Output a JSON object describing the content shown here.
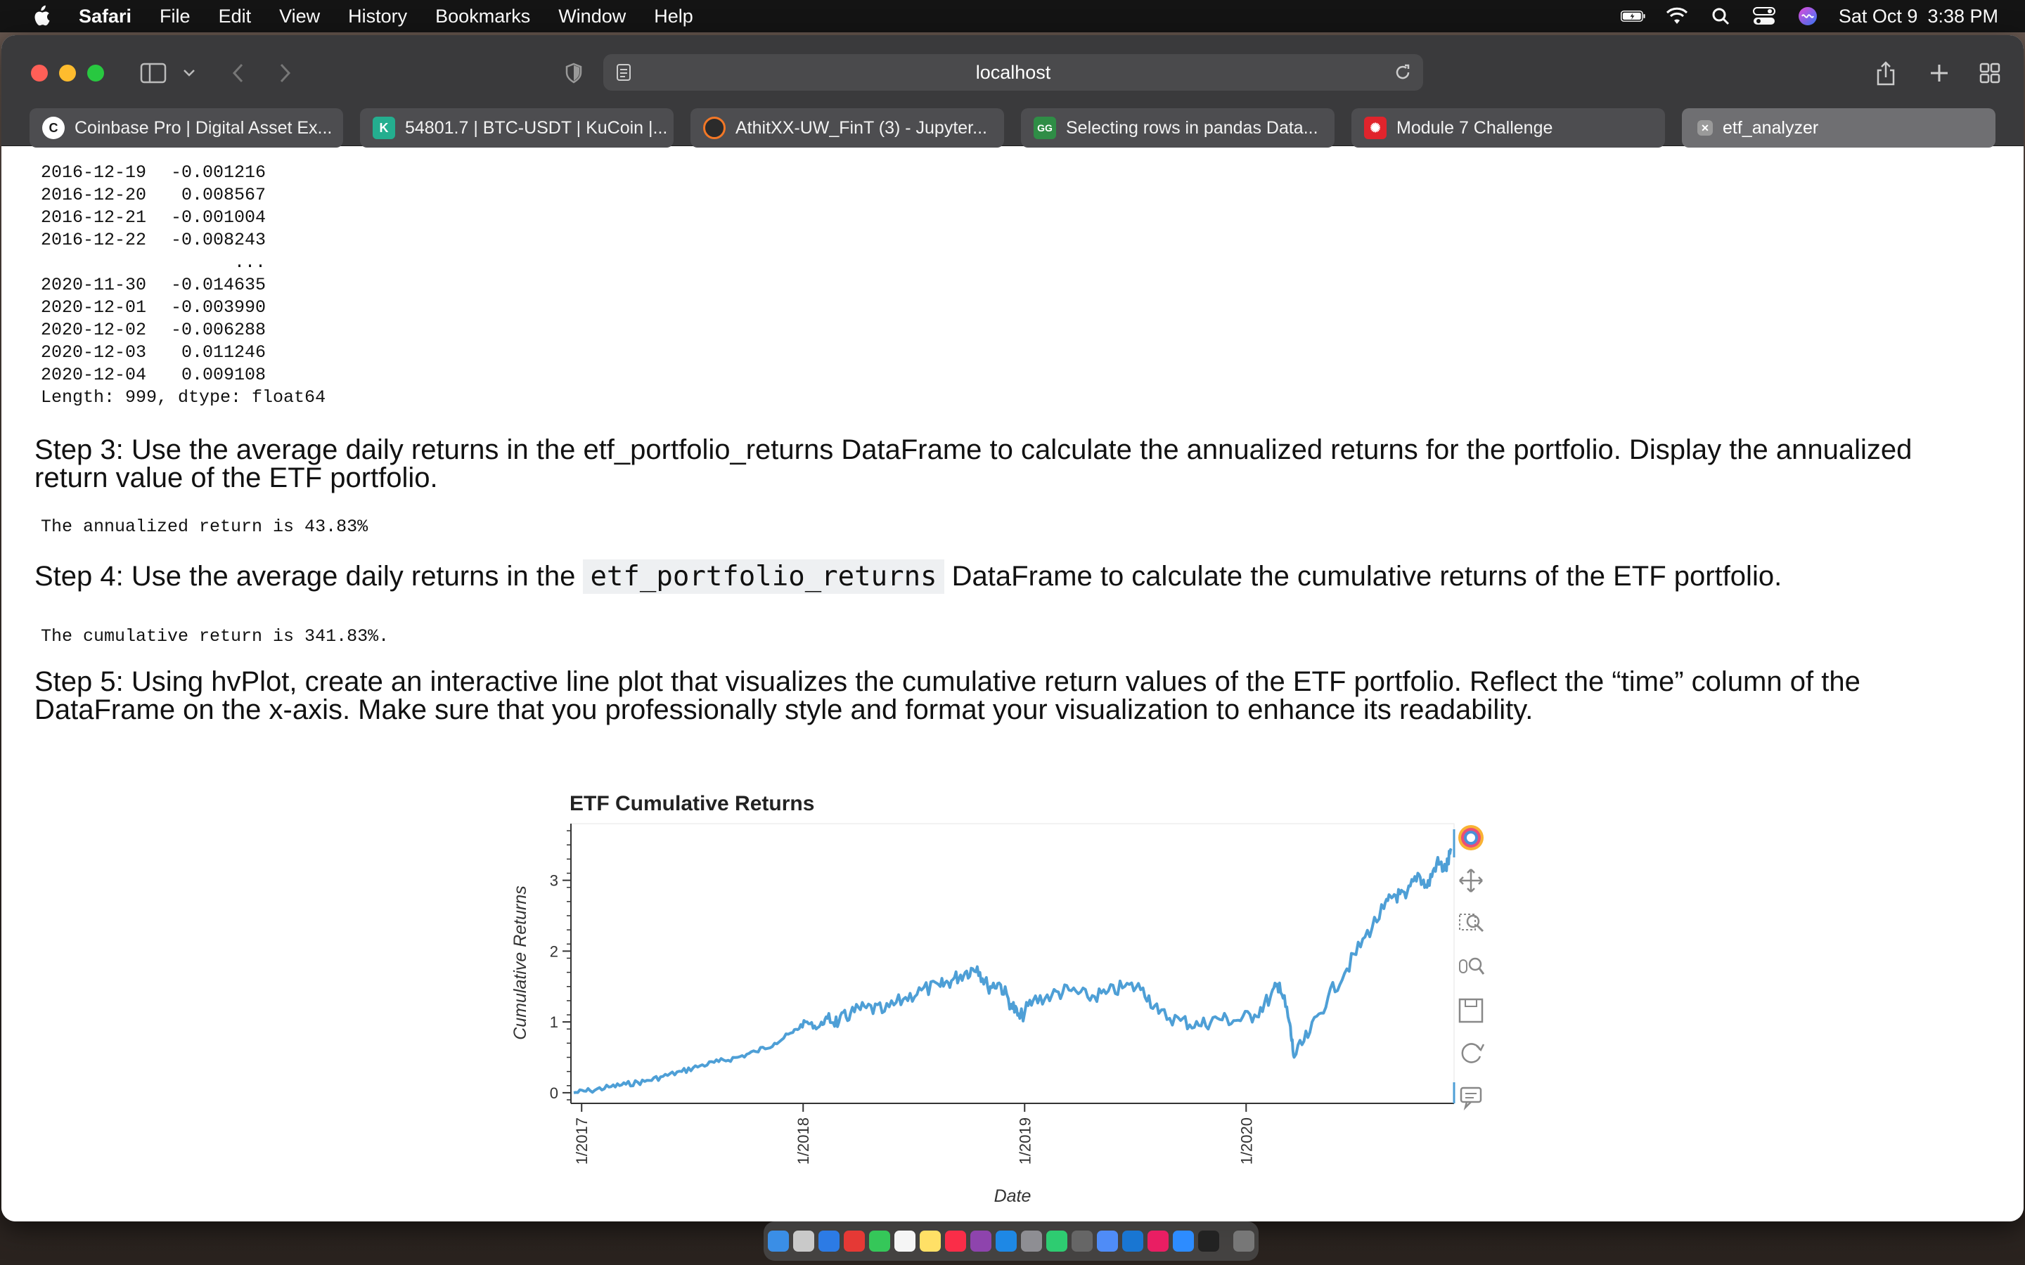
{
  "menubar": {
    "app": "Safari",
    "items": [
      "File",
      "Edit",
      "View",
      "History",
      "Bookmarks",
      "Window",
      "Help"
    ],
    "date": "Sat Oct 9",
    "time": "3:38 PM"
  },
  "browser": {
    "url": "localhost",
    "tabs": [
      {
        "title": "Coinbase Pro | Digital Asset Ex...",
        "color": "#1a1a1a"
      },
      {
        "title": "54801.7 | BTC-USDT | KuCoin |...",
        "color": "#24ae8f"
      },
      {
        "title": "AthitXX-UW_FinT (3) - Jupyter...",
        "color": "#f37726"
      },
      {
        "title": "Selecting rows in pandas Data...",
        "color": "#2f8d46"
      },
      {
        "title": "Module 7 Challenge",
        "color": "#e0242c"
      },
      {
        "title": "etf_analyzer",
        "color": "#9a9a9a"
      }
    ]
  },
  "notebook": {
    "series_rows": [
      [
        "2016-12-19",
        "-0.001216"
      ],
      [
        "2016-12-20",
        "0.008567"
      ],
      [
        "2016-12-21",
        "-0.001004"
      ],
      [
        "2016-12-22",
        "-0.008243"
      ],
      [
        "",
        "..."
      ],
      [
        "2020-11-30",
        "-0.014635"
      ],
      [
        "2020-12-01",
        "-0.003990"
      ],
      [
        "2020-12-02",
        "-0.006288"
      ],
      [
        "2020-12-03",
        "0.011246"
      ],
      [
        "2020-12-04",
        "0.009108"
      ]
    ],
    "series_footer": "Length: 999, dtype: float64",
    "step3": "Step 3: Use the average daily returns in the etf_portfolio_returns DataFrame to calculate the annualized returns for the portfolio. Display the annualized return value of the ETF portfolio.",
    "step3_output": "The annualized return is 43.83%",
    "step4_pre": "Step 4: Use the average daily returns in the ",
    "step4_code": "etf_portfolio_returns",
    "step4_post": " DataFrame to calculate the cumulative returns of the ETF portfolio.",
    "step4_output": "The cumulative return is 341.83%.",
    "step5": "Step 5: Using hvPlot, create an interactive line plot that visualizes the cumulative return values of the ETF portfolio. Reflect the “time” column of the DataFrame on the x-axis. Make sure that you professionally style and format your visualization to enhance its readability."
  },
  "chart_data": {
    "type": "line",
    "title": "ETF Cumulative Returns",
    "xlabel": "Date",
    "ylabel": "Cumulative Returns",
    "color": "#4e9fd6",
    "x_ticks": [
      "1/2017",
      "1/2018",
      "1/2019",
      "1/2020"
    ],
    "y_ticks": [
      0,
      1,
      2,
      3
    ],
    "xlim": [
      "2016-12-19",
      "2020-12-04"
    ],
    "ylim": [
      -0.15,
      3.8
    ],
    "series": [
      {
        "x": [
          "2016-12-19",
          "2017-01-15",
          "2017-02-15",
          "2017-03-15",
          "2017-04-15",
          "2017-05-15",
          "2017-06-15",
          "2017-07-15",
          "2017-08-15",
          "2017-09-15",
          "2017-10-15",
          "2017-11-15",
          "2017-12-15",
          "2018-01-05",
          "2018-01-25",
          "2018-02-10",
          "2018-03-01",
          "2018-03-20",
          "2018-04-15",
          "2018-05-15",
          "2018-06-15",
          "2018-07-15",
          "2018-08-15",
          "2018-09-05",
          "2018-09-25",
          "2018-10-15",
          "2018-11-01",
          "2018-11-20",
          "2018-12-10",
          "2018-12-24",
          "2019-01-15",
          "2019-02-15",
          "2019-03-15",
          "2019-04-15",
          "2019-05-15",
          "2019-06-15",
          "2019-07-15",
          "2019-08-10",
          "2019-09-15",
          "2019-10-15",
          "2019-11-15",
          "2019-12-15",
          "2020-01-15",
          "2020-02-10",
          "2020-02-25",
          "2020-03-12",
          "2020-03-20",
          "2020-04-15",
          "2020-05-15",
          "2020-06-15",
          "2020-07-15",
          "2020-08-15",
          "2020-09-01",
          "2020-09-20",
          "2020-10-10",
          "2020-10-25",
          "2020-11-10",
          "2020-11-25",
          "2020-12-04"
        ],
        "values": [
          0.0,
          0.03,
          0.08,
          0.12,
          0.16,
          0.23,
          0.3,
          0.38,
          0.44,
          0.5,
          0.58,
          0.7,
          0.85,
          1.0,
          0.92,
          1.05,
          1.0,
          1.12,
          1.2,
          1.15,
          1.32,
          1.45,
          1.5,
          1.6,
          1.7,
          1.78,
          1.5,
          1.55,
          1.25,
          1.05,
          1.3,
          1.38,
          1.45,
          1.35,
          1.4,
          1.5,
          1.48,
          1.12,
          1.02,
          0.95,
          1.05,
          1.02,
          1.1,
          1.35,
          1.55,
          1.0,
          0.5,
          0.85,
          1.35,
          1.75,
          2.2,
          2.6,
          2.8,
          2.75,
          3.1,
          2.9,
          3.25,
          3.15,
          3.42
        ]
      }
    ]
  }
}
